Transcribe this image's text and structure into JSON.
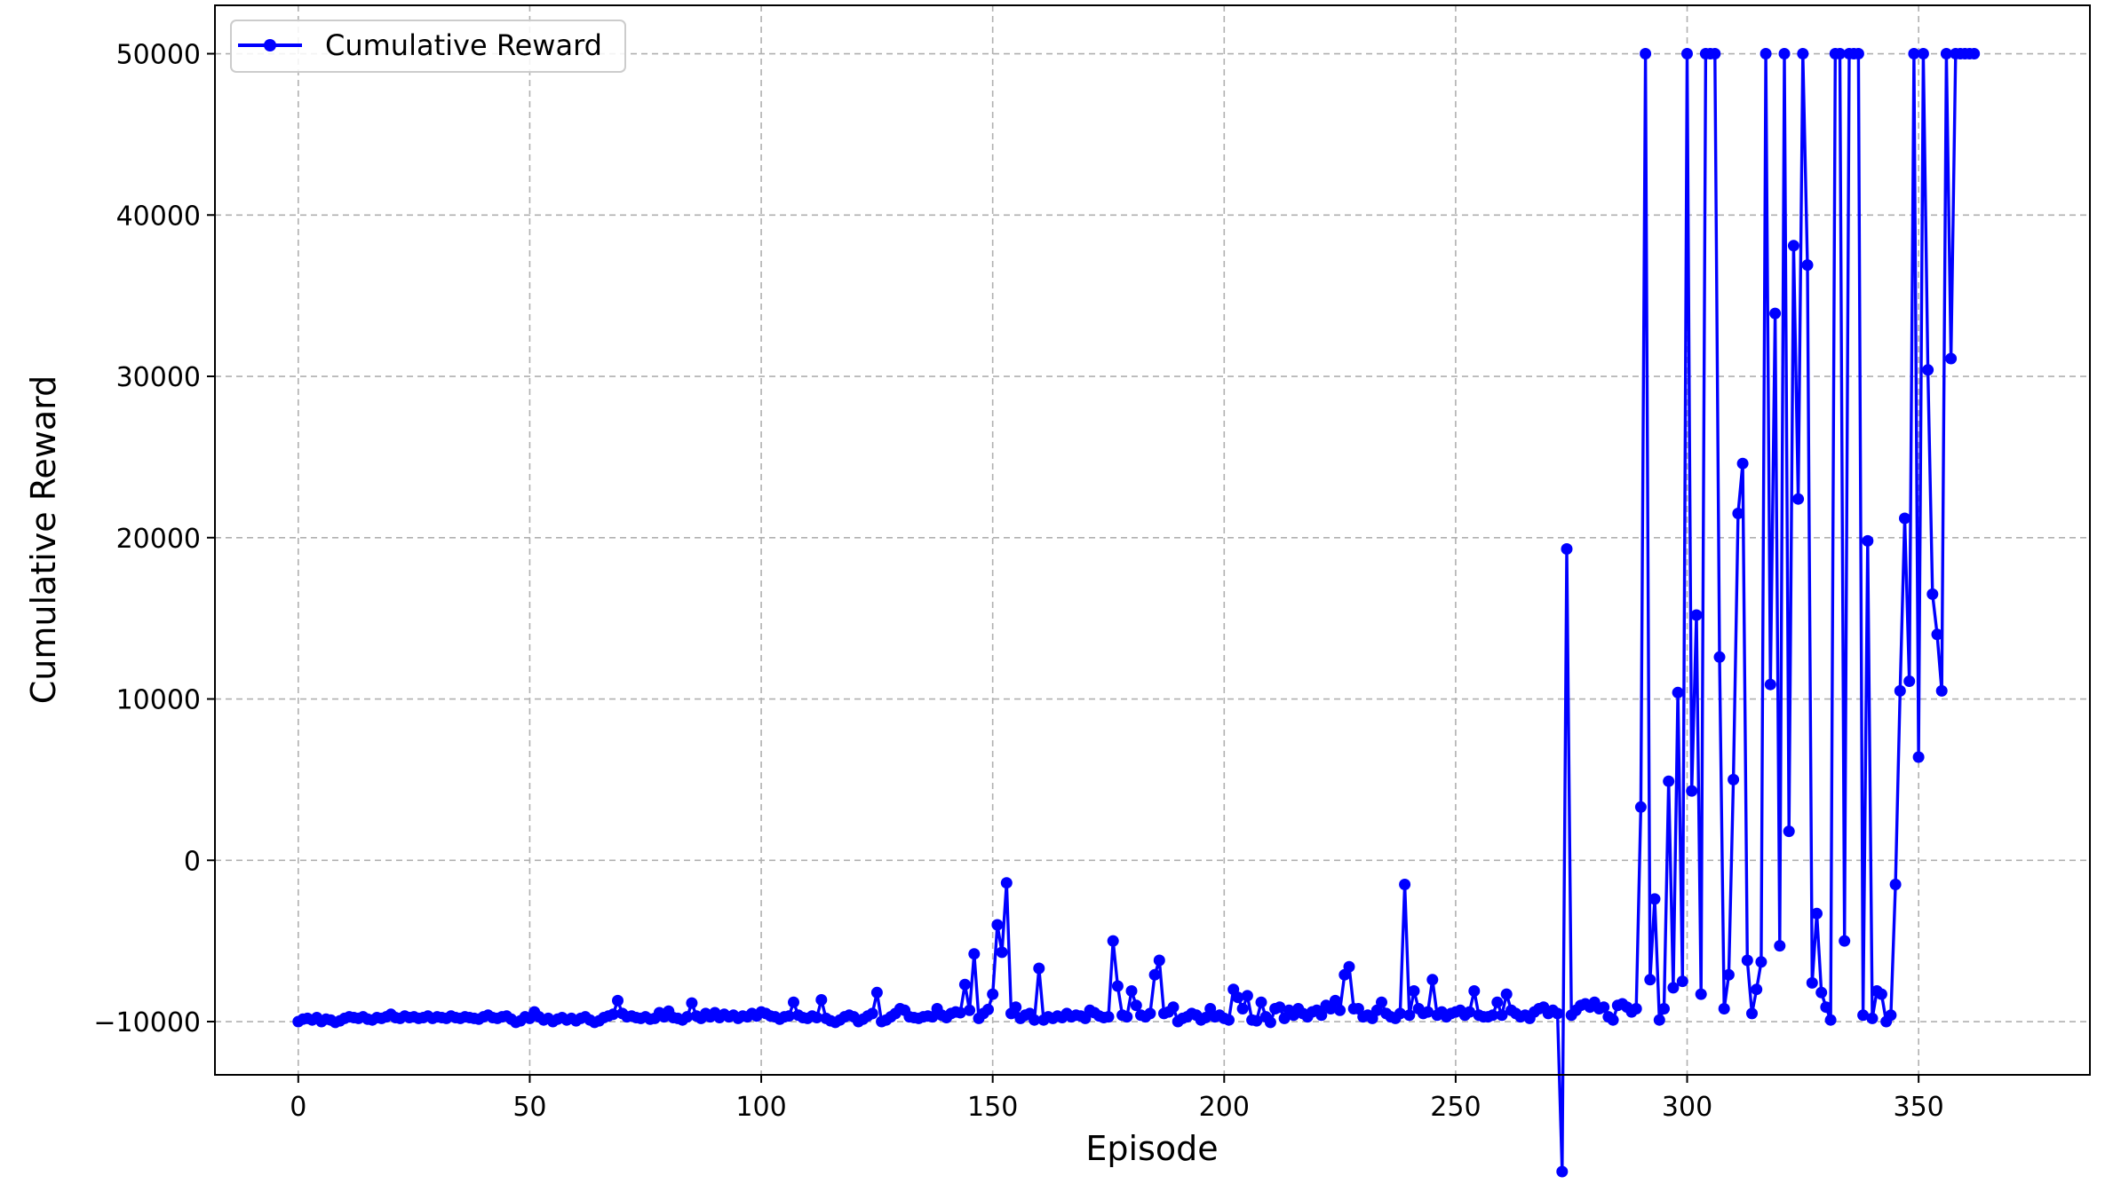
{
  "chart_data": {
    "type": "line",
    "title": "",
    "xlabel": "Episode",
    "ylabel": "Cumulative Reward",
    "xlim": [
      -18,
      387
    ],
    "ylim": [
      -13300,
      53000
    ],
    "xticks": [
      0,
      50,
      100,
      150,
      200,
      250,
      300,
      350
    ],
    "yticks": [
      -10000,
      0,
      10000,
      20000,
      30000,
      40000,
      50000
    ],
    "xtick_labels": [
      "0",
      "50",
      "100",
      "150",
      "200",
      "250",
      "300",
      "350"
    ],
    "ytick_labels": [
      "−10000",
      "0",
      "10000",
      "20000",
      "30000",
      "40000",
      "50000"
    ],
    "grid": true,
    "legend_position": "upper-left",
    "marker": "circle",
    "series": [
      {
        "name": "Cumulative Reward",
        "color": "#0000ff",
        "values": [
          -10000,
          -9850,
          -9800,
          -9900,
          -9750,
          -10000,
          -9850,
          -9900,
          -10050,
          -9950,
          -9800,
          -9700,
          -9750,
          -9800,
          -9700,
          -9850,
          -9900,
          -9750,
          -9800,
          -9700,
          -9550,
          -9750,
          -9800,
          -9650,
          -9750,
          -9700,
          -9800,
          -9750,
          -9650,
          -9800,
          -9700,
          -9750,
          -9800,
          -9650,
          -9750,
          -9800,
          -9700,
          -9750,
          -9800,
          -9850,
          -9700,
          -9600,
          -9750,
          -9800,
          -9700,
          -9650,
          -9850,
          -10050,
          -9950,
          -9700,
          -9800,
          -9400,
          -9700,
          -9900,
          -9800,
          -10000,
          -9850,
          -9750,
          -9900,
          -9800,
          -9950,
          -9800,
          -9700,
          -9900,
          -10050,
          -9950,
          -9750,
          -9650,
          -9550,
          -8700,
          -9500,
          -9700,
          -9650,
          -9750,
          -9800,
          -9700,
          -9850,
          -9800,
          -9450,
          -9700,
          -9350,
          -9750,
          -9800,
          -9900,
          -9700,
          -8850,
          -9650,
          -9800,
          -9500,
          -9700,
          -9450,
          -9750,
          -9550,
          -9700,
          -9600,
          -9800,
          -9650,
          -9700,
          -9500,
          -9650,
          -9400,
          -9500,
          -9650,
          -9700,
          -9850,
          -9700,
          -9650,
          -8800,
          -9600,
          -9750,
          -9800,
          -9650,
          -9750,
          -8650,
          -9800,
          -9950,
          -10050,
          -9900,
          -9700,
          -9600,
          -9700,
          -10000,
          -9850,
          -9650,
          -9500,
          -8200,
          -10000,
          -9900,
          -9700,
          -9500,
          -9200,
          -9300,
          -9700,
          -9750,
          -9800,
          -9700,
          -9650,
          -9700,
          -9200,
          -9600,
          -9750,
          -9500,
          -9400,
          -9450,
          -7700,
          -9300,
          -5800,
          -9800,
          -9500,
          -9250,
          -8300,
          -4000,
          -5700,
          -1400,
          -9500,
          -9100,
          -9800,
          -9600,
          -9500,
          -9900,
          -6700,
          -9900,
          -9700,
          -9800,
          -9650,
          -9750,
          -9500,
          -9700,
          -9600,
          -9650,
          -9800,
          -9300,
          -9450,
          -9650,
          -9750,
          -9700,
          -5000,
          -7800,
          -9600,
          -9700,
          -8100,
          -9000,
          -9600,
          -9700,
          -9500,
          -7100,
          -6200,
          -9500,
          -9400,
          -9100,
          -10000,
          -9800,
          -9700,
          -9500,
          -9600,
          -9900,
          -9750,
          -9200,
          -9700,
          -9600,
          -9800,
          -9900,
          -8000,
          -8500,
          -9200,
          -8400,
          -9900,
          -9950,
          -8800,
          -9700,
          -10050,
          -9200,
          -9100,
          -9800,
          -9300,
          -9600,
          -9200,
          -9500,
          -9700,
          -9400,
          -9300,
          -9600,
          -9000,
          -9200,
          -8700,
          -9300,
          -7100,
          -6600,
          -9200,
          -9200,
          -9700,
          -9600,
          -9800,
          -9300,
          -8800,
          -9500,
          -9700,
          -9800,
          -9500,
          -1500,
          -9600,
          -8100,
          -9200,
          -9500,
          -9400,
          -7400,
          -9600,
          -9400,
          -9700,
          -9500,
          -9400,
          -9300,
          -9600,
          -9400,
          -8100,
          -9600,
          -9700,
          -9700,
          -9600,
          -8800,
          -9600,
          -8300,
          -9300,
          -9500,
          -9700,
          -9600,
          -9800,
          -9400,
          -9200,
          -9100,
          -9500,
          -9300,
          -9500,
          -19300,
          19300,
          -9600,
          -9300,
          -9000,
          -8900,
          -9100,
          -8800,
          -9200,
          -9100,
          -9700,
          -9900,
          -9000,
          -8900,
          -9100,
          -9400,
          -9200,
          3300,
          50000,
          -7400,
          -2400,
          -9900,
          -9200,
          4900,
          -7900,
          10400,
          -7500,
          50000,
          4300,
          15200,
          -8300,
          50000,
          50000,
          50000,
          12600,
          -9200,
          -7100,
          5000,
          21500,
          24600,
          -6200,
          -9500,
          -8000,
          -6300,
          50000,
          10900,
          33900,
          -5300,
          50000,
          1800,
          38100,
          22400,
          50000,
          36900,
          -7600,
          -3300,
          -8200,
          -9100,
          -9900,
          50000,
          50000,
          -5000,
          50000,
          50000,
          50000,
          -9600,
          19800,
          -9800,
          -8100,
          -8300,
          -10000,
          -9600,
          -1500,
          10500,
          21200,
          11100,
          50000,
          6400,
          50000,
          30400,
          16500,
          14000,
          10500,
          50000,
          31100,
          50000,
          50000,
          50000,
          50000,
          50000
        ]
      }
    ]
  }
}
